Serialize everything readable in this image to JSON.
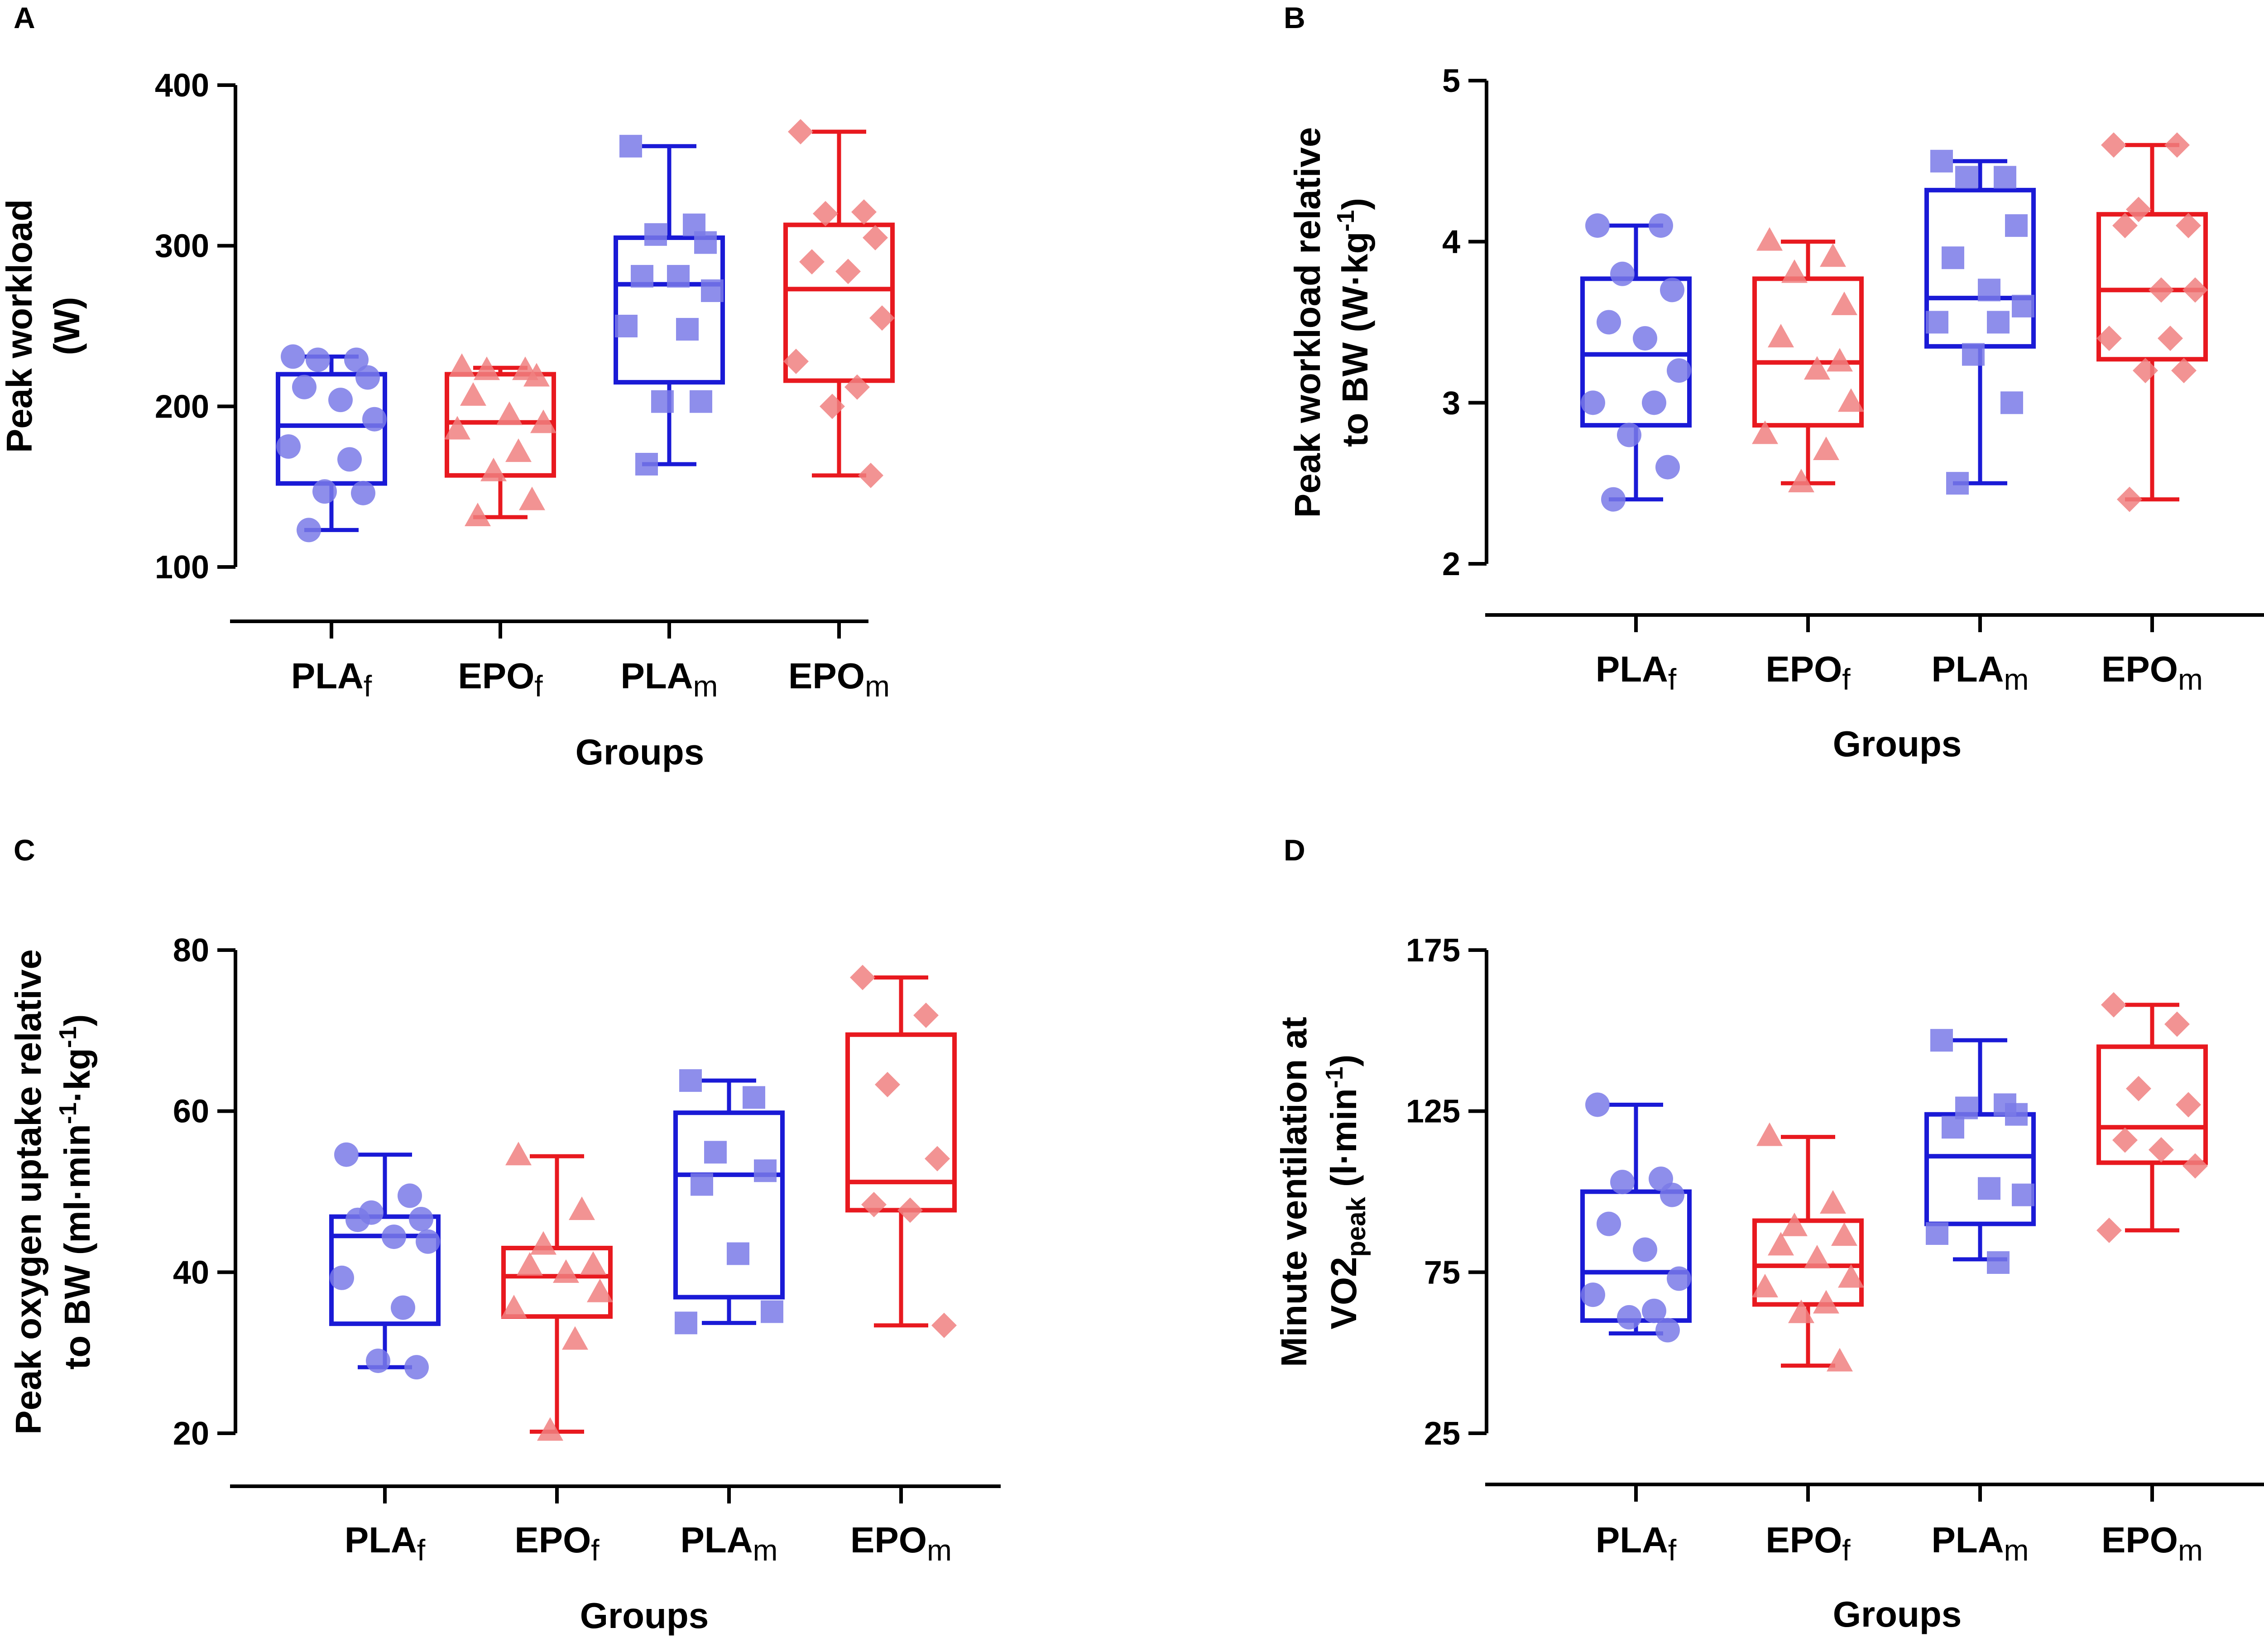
{
  "colors": {
    "placebo": "#1a1ad6",
    "epo": "#e8191f",
    "placebo_marker": "#7a7ae8",
    "epo_marker": "#f08080",
    "axis": "#000000"
  },
  "chart_data": [
    {
      "panel": "A",
      "type": "box",
      "categories": [
        {
          "base": "PLA",
          "sub": "f"
        },
        {
          "base": "EPO",
          "sub": "f"
        },
        {
          "base": "PLA",
          "sub": "m"
        },
        {
          "base": "EPO",
          "sub": "m"
        }
      ],
      "xlabel": "Groups",
      "ylabel_lines": [
        [
          {
            "t": "Peak workload"
          }
        ],
        [
          {
            "t": "(W)"
          }
        ]
      ],
      "ylim": [
        100,
        400
      ],
      "yticks": [
        100,
        200,
        300,
        400
      ],
      "boxes": [
        {
          "min": 123,
          "q1": 152,
          "median": 188,
          "q3": 220,
          "max": 231,
          "points": [
            231,
            229,
            229,
            218,
            212,
            204,
            192,
            175,
            167,
            147,
            146,
            123
          ]
        },
        {
          "min": 131,
          "q1": 157,
          "median": 190,
          "q3": 220,
          "max": 224,
          "points": [
            224,
            222,
            222,
            218,
            206,
            194,
            189,
            185,
            171,
            159,
            141,
            131
          ]
        },
        {
          "min": 164,
          "q1": 215,
          "median": 276,
          "q3": 305,
          "max": 362,
          "points": [
            362,
            313,
            307,
            302,
            281,
            281,
            272,
            250,
            248,
            203,
            203,
            164
          ]
        },
        {
          "min": 157,
          "q1": 216,
          "median": 273,
          "q3": 313,
          "max": 371,
          "points": [
            371,
            321,
            320,
            305,
            290,
            284,
            255,
            228,
            212,
            200,
            157
          ]
        }
      ]
    },
    {
      "panel": "B",
      "type": "box",
      "categories": [
        {
          "base": "PLA",
          "sub": "f"
        },
        {
          "base": "EPO",
          "sub": "f"
        },
        {
          "base": "PLA",
          "sub": "m"
        },
        {
          "base": "EPO",
          "sub": "m"
        }
      ],
      "xlabel": "Groups",
      "ylabel_lines": [
        [
          {
            "t": "Peak workload relative"
          }
        ],
        [
          {
            "t": "to BW (W·kg"
          },
          {
            "t": "-1",
            "sup": true
          },
          {
            "t": ")"
          }
        ]
      ],
      "ylim": [
        2,
        5
      ],
      "yticks": [
        2,
        3,
        4,
        5
      ],
      "boxes": [
        {
          "min": 2.4,
          "q1": 2.86,
          "median": 3.3,
          "q3": 3.77,
          "max": 4.1,
          "points": [
            4.1,
            4.1,
            3.8,
            3.7,
            3.5,
            3.4,
            3.2,
            3.0,
            3.0,
            2.8,
            2.6,
            2.4
          ]
        },
        {
          "min": 2.5,
          "q1": 2.86,
          "median": 3.25,
          "q3": 3.77,
          "max": 4.0,
          "points": [
            4.0,
            3.9,
            3.8,
            3.6,
            3.4,
            3.2,
            3.0,
            2.8,
            2.7,
            2.5,
            3.25
          ]
        },
        {
          "min": 2.5,
          "q1": 3.35,
          "median": 3.65,
          "q3": 4.32,
          "max": 4.5,
          "points": [
            4.5,
            4.4,
            4.4,
            4.1,
            3.9,
            3.7,
            3.6,
            3.5,
            3.5,
            3.3,
            3.0,
            2.5
          ]
        },
        {
          "min": 2.4,
          "q1": 3.27,
          "median": 3.7,
          "q3": 4.17,
          "max": 4.6,
          "points": [
            4.6,
            4.6,
            4.2,
            4.1,
            4.1,
            3.7,
            3.7,
            3.4,
            3.4,
            3.2,
            3.2,
            2.4
          ]
        }
      ]
    },
    {
      "panel": "C",
      "type": "box",
      "categories": [
        {
          "base": "PLA",
          "sub": "f"
        },
        {
          "base": "EPO",
          "sub": "f"
        },
        {
          "base": "PLA",
          "sub": "m"
        },
        {
          "base": "EPO",
          "sub": "m"
        }
      ],
      "xlabel": "Groups",
      "ylabel_lines": [
        [
          {
            "t": "Peak oxygen uptake relative"
          }
        ],
        [
          {
            "t": "to BW (ml·min"
          },
          {
            "t": "-1",
            "sup": true
          },
          {
            "t": "·kg"
          },
          {
            "t": "-1",
            "sup": true
          },
          {
            "t": ")"
          }
        ]
      ],
      "ylim": [
        20,
        80
      ],
      "yticks": [
        20,
        40,
        60,
        80
      ],
      "boxes": [
        {
          "min": 28.2,
          "q1": 33.6,
          "median": 44.5,
          "q3": 46.9,
          "max": 54.6,
          "points": [
            54.6,
            49.5,
            47.4,
            46.6,
            46.5,
            44.4,
            43.8,
            39.3,
            35.6,
            29.0,
            28.2
          ]
        },
        {
          "min": 20.2,
          "q1": 34.5,
          "median": 39.5,
          "q3": 43.0,
          "max": 54.4,
          "points": [
            54.4,
            47.6,
            43.3,
            40.8,
            40.7,
            39.8,
            37.4,
            35.4,
            31.5,
            20.2
          ]
        },
        {
          "min": 33.7,
          "q1": 36.9,
          "median": 52.1,
          "q3": 59.8,
          "max": 63.8,
          "points": [
            63.8,
            61.7,
            54.9,
            52.6,
            50.9,
            42.3,
            35.1,
            33.7
          ]
        },
        {
          "min": 33.4,
          "q1": 47.7,
          "median": 51.2,
          "q3": 69.5,
          "max": 76.6,
          "points": [
            76.6,
            71.9,
            63.3,
            54.1,
            48.4,
            47.7,
            33.4
          ]
        }
      ]
    },
    {
      "panel": "D",
      "type": "box",
      "categories": [
        {
          "base": "PLA",
          "sub": "f"
        },
        {
          "base": "EPO",
          "sub": "f"
        },
        {
          "base": "PLA",
          "sub": "m"
        },
        {
          "base": "EPO",
          "sub": "m"
        }
      ],
      "xlabel": "Groups",
      "ylabel_lines": [
        [
          {
            "t": "Minute ventilation at"
          }
        ],
        [
          {
            "t": "VO2"
          },
          {
            "t": "peak",
            "sub": true
          },
          {
            "t": " (l·min"
          },
          {
            "t": "-1",
            "sup": true
          },
          {
            "t": ")"
          }
        ]
      ],
      "ylim": [
        25,
        175
      ],
      "yticks": [
        25,
        75,
        125,
        175
      ],
      "boxes": [
        {
          "min": 56,
          "q1": 60,
          "median": 75,
          "q3": 100,
          "max": 127,
          "points": [
            127,
            104,
            103,
            99,
            90,
            82,
            73,
            68,
            63,
            61,
            57
          ]
        },
        {
          "min": 46,
          "q1": 65,
          "median": 77,
          "q3": 91,
          "max": 117,
          "points": [
            117,
            96,
            89,
            86,
            83,
            79,
            73,
            70,
            65,
            62,
            47
          ]
        },
        {
          "min": 79,
          "q1": 90,
          "median": 111,
          "q3": 124,
          "max": 147,
          "points": [
            147,
            127,
            126,
            124,
            120,
            101,
            99,
            87,
            78
          ]
        },
        {
          "min": 88,
          "q1": 109,
          "median": 120,
          "q3": 145,
          "max": 158,
          "points": [
            158,
            152,
            132,
            127,
            116,
            113,
            108,
            88
          ]
        }
      ]
    }
  ]
}
